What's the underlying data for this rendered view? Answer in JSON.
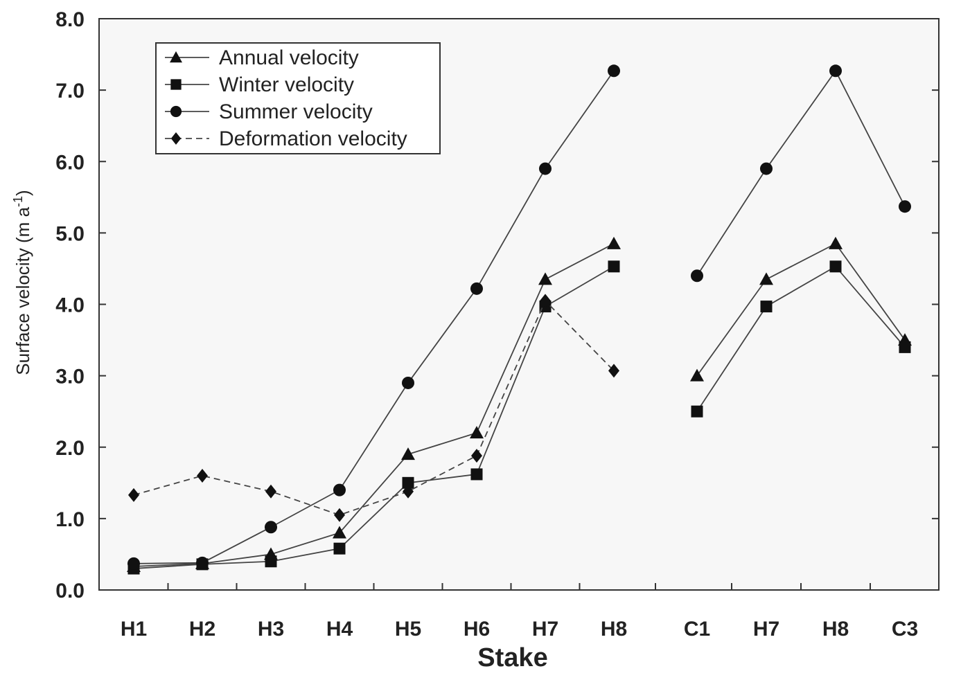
{
  "chart_data": {
    "type": "line",
    "xlabel": "Stake",
    "ylabel": "Surface velocity (m a",
    "ylabel_sup": "-1",
    "ylabel_end": ")",
    "ylim": [
      0,
      8
    ],
    "yticks": [
      "0.0",
      "1.0",
      "2.0",
      "3.0",
      "4.0",
      "5.0",
      "6.0",
      "7.0",
      "8.0"
    ],
    "categories": [
      "H1",
      "H2",
      "H3",
      "H4",
      "H5",
      "H6",
      "H7",
      "H8",
      "C1",
      "H7",
      "H8",
      "C3"
    ],
    "grid": false,
    "legend_position": "top-left",
    "series": [
      {
        "name": "Annual velocity",
        "marker": "triangle",
        "dash": "solid",
        "segments": [
          [
            [
              0,
              0.33
            ],
            [
              1,
              0.37
            ],
            [
              2,
              0.5
            ],
            [
              3,
              0.8
            ],
            [
              4,
              1.9
            ],
            [
              5,
              2.2
            ],
            [
              6,
              4.35
            ],
            [
              7,
              4.85
            ]
          ],
          [
            [
              8,
              3.0
            ],
            [
              9,
              4.35
            ],
            [
              10,
              4.85
            ],
            [
              11,
              3.5
            ]
          ]
        ]
      },
      {
        "name": "Winter velocity",
        "marker": "square",
        "dash": "solid",
        "segments": [
          [
            [
              0,
              0.3
            ],
            [
              1,
              0.36
            ],
            [
              2,
              0.4
            ],
            [
              3,
              0.58
            ],
            [
              4,
              1.5
            ],
            [
              5,
              1.62
            ],
            [
              6,
              3.97
            ],
            [
              7,
              4.53
            ]
          ],
          [
            [
              8,
              2.5
            ],
            [
              9,
              3.97
            ],
            [
              10,
              4.53
            ],
            [
              11,
              3.4
            ]
          ]
        ]
      },
      {
        "name": "Summer velocity",
        "marker": "circle",
        "dash": "solid",
        "segments": [
          [
            [
              0,
              0.37
            ],
            [
              1,
              0.38
            ],
            [
              2,
              0.88
            ],
            [
              3,
              1.4
            ],
            [
              4,
              2.9
            ],
            [
              5,
              4.22
            ],
            [
              6,
              5.9
            ],
            [
              7,
              7.27
            ]
          ],
          [
            [
              8,
              4.4
            ],
            [
              9,
              5.9
            ],
            [
              10,
              7.27
            ],
            [
              11,
              5.37
            ]
          ]
        ]
      },
      {
        "name": "Deformation velocity",
        "marker": "diamond",
        "dash": "dashed",
        "segments": [
          [
            [
              0,
              1.33
            ],
            [
              1,
              1.6
            ],
            [
              2,
              1.38
            ],
            [
              3,
              1.05
            ],
            [
              4,
              1.38
            ],
            [
              5,
              1.88
            ],
            [
              6,
              4.05
            ],
            [
              7,
              3.07
            ]
          ]
        ]
      }
    ]
  }
}
